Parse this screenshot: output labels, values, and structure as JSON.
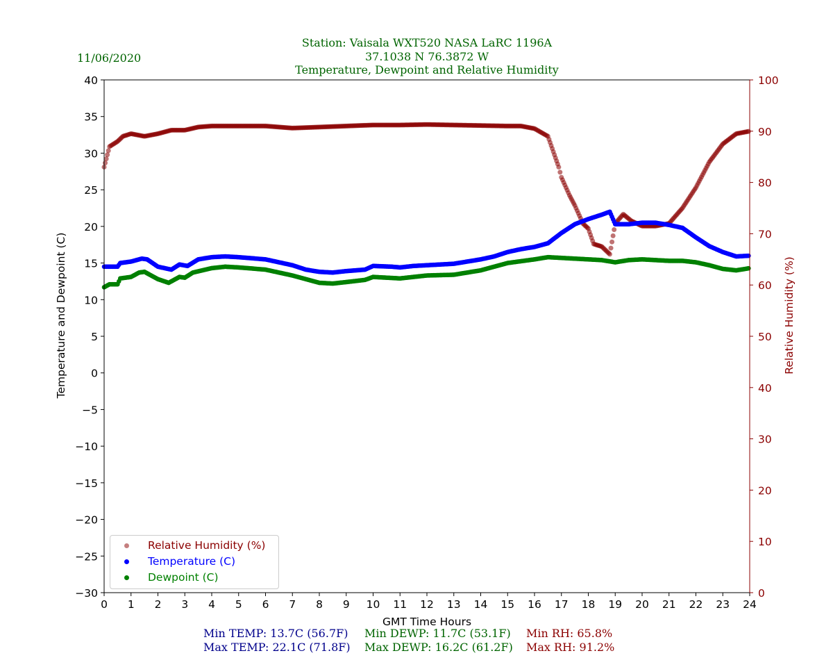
{
  "header": {
    "date": "11/06/2020",
    "title_line1": "Station:  Vaisala WXT520  NASA LaRC 1196A",
    "title_line2": "37.1038 N 76.3872 W",
    "title_line3": "Temperature, Dewpoint and Relative Humidity"
  },
  "stats": {
    "min_temp": "Min TEMP: 13.7C (56.7F)",
    "max_temp": "Max TEMP: 22.1C (71.8F)",
    "min_dewp": "Min DEWP: 11.7C (53.1F)",
    "max_dewp": "Max DEWP: 16.2C (61.2F)",
    "min_rh": "Min RH: 65.8%",
    "max_rh": "Max RH: 91.2%"
  },
  "colors": {
    "temp": "#0000ff",
    "dewp": "#008000",
    "rh": "#8b0000",
    "title": "#006400"
  },
  "chart_data": {
    "type": "scatter",
    "title": "Temperature, Dewpoint and Relative Humidity",
    "xlabel": "GMT Time Hours",
    "ylabel": "Temperature and Dewpoint (C)",
    "y2label": "Relative Humidity (%)",
    "xlim": [
      0,
      24
    ],
    "ylim": [
      -30,
      40
    ],
    "y2lim": [
      0,
      100
    ],
    "xticks": [
      0,
      1,
      2,
      3,
      4,
      5,
      6,
      7,
      8,
      9,
      10,
      11,
      12,
      13,
      14,
      15,
      16,
      17,
      18,
      19,
      20,
      21,
      22,
      23,
      24
    ],
    "yticks": [
      -30,
      -25,
      -20,
      -15,
      -10,
      -5,
      0,
      5,
      10,
      15,
      20,
      25,
      30,
      35,
      40
    ],
    "y2ticks": [
      0,
      10,
      20,
      30,
      40,
      50,
      60,
      70,
      80,
      90,
      100
    ],
    "legend_position": "lower-left",
    "series": [
      {
        "name": "Relative Humidity (%)",
        "axis": "right",
        "x": [
          0,
          0.2,
          0.5,
          0.7,
          1,
          1.5,
          2,
          2.5,
          3,
          3.5,
          4,
          5,
          6,
          7,
          8,
          9,
          10,
          11,
          12,
          13,
          14,
          15,
          15.5,
          16,
          16.5,
          16.7,
          16.9,
          17,
          17.3,
          17.5,
          17.8,
          18,
          18.2,
          18.5,
          18.8,
          19,
          19.3,
          19.6,
          20,
          20.5,
          21,
          21.5,
          22,
          22.5,
          23,
          23.5,
          24
        ],
        "y": [
          83,
          87,
          88,
          89,
          89.5,
          89,
          89.5,
          90.2,
          90.2,
          90.8,
          91,
          91,
          91,
          90.6,
          90.8,
          91,
          91.2,
          91.2,
          91.3,
          91.2,
          91.1,
          91,
          91,
          90.5,
          89,
          86,
          83,
          81,
          77.5,
          75.5,
          72,
          71,
          68,
          67.5,
          66,
          72,
          73.8,
          72.5,
          71.5,
          71.5,
          72,
          75,
          79,
          84,
          87.5,
          89.5,
          90
        ]
      },
      {
        "name": "Temperature (C)",
        "axis": "left",
        "x": [
          0,
          0.5,
          0.6,
          1,
          1.4,
          1.6,
          2,
          2.5,
          2.8,
          3.1,
          3.5,
          4,
          4.5,
          5,
          6,
          6.5,
          7,
          7.5,
          8,
          8.5,
          9,
          9.7,
          10,
          10.7,
          11,
          11.5,
          12,
          13,
          14,
          14.5,
          15,
          15.5,
          16,
          16.5,
          17,
          17.5,
          18,
          18.5,
          18.8,
          19,
          19.5,
          20,
          20.5,
          21,
          21.5,
          22,
          22.5,
          23,
          23.5,
          24
        ],
        "y": [
          14.5,
          14.5,
          15,
          15.2,
          15.6,
          15.5,
          14.5,
          14.1,
          14.8,
          14.6,
          15.5,
          15.8,
          15.9,
          15.8,
          15.5,
          15.1,
          14.7,
          14.1,
          13.8,
          13.7,
          13.9,
          14.1,
          14.6,
          14.5,
          14.4,
          14.6,
          14.7,
          14.9,
          15.5,
          15.9,
          16.5,
          16.9,
          17.2,
          17.7,
          19.1,
          20.3,
          21.0,
          21.6,
          22.0,
          20.3,
          20.3,
          20.5,
          20.5,
          20.2,
          19.8,
          18.5,
          17.3,
          16.5,
          15.9,
          16.0
        ]
      },
      {
        "name": "Dewpoint (C)",
        "axis": "left",
        "x": [
          0,
          0.2,
          0.5,
          0.6,
          1,
          1.3,
          1.5,
          2,
          2.4,
          2.8,
          3,
          3.3,
          4,
          4.5,
          5,
          6,
          7,
          7.5,
          8,
          8.5,
          9,
          9.7,
          10,
          11,
          12,
          13,
          14,
          15,
          16,
          16.5,
          17,
          17.5,
          18,
          18.5,
          19,
          19.5,
          20,
          21,
          21.5,
          22,
          22.5,
          23,
          23.5,
          24
        ],
        "y": [
          11.7,
          12.1,
          12.1,
          12.9,
          13.1,
          13.7,
          13.8,
          12.8,
          12.3,
          13.1,
          13,
          13.7,
          14.3,
          14.5,
          14.4,
          14.1,
          13.3,
          12.8,
          12.3,
          12.2,
          12.4,
          12.7,
          13.1,
          12.9,
          13.3,
          13.4,
          14.0,
          15.0,
          15.5,
          15.8,
          15.7,
          15.6,
          15.5,
          15.4,
          15.1,
          15.4,
          15.5,
          15.3,
          15.3,
          15.1,
          14.7,
          14.2,
          14.0,
          14.3
        ]
      }
    ]
  }
}
